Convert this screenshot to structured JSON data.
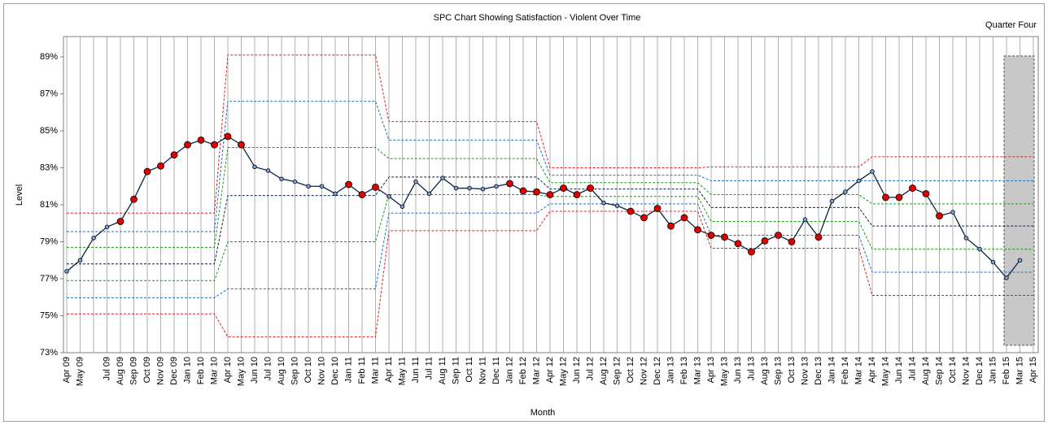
{
  "chart_data": {
    "type": "line",
    "title": "SPC Chart Showing Satisfaction - Violent Over Time",
    "x_label": "Month",
    "y_label": "Level",
    "categories": [
      "Apr 09",
      "May 09",
      null,
      "Jul 09",
      "Aug 09",
      "Sep 09",
      "Oct 09",
      "Nov 09",
      "Dec 09",
      "Jan 10",
      "Feb 10",
      "Mar 10",
      "Apr 10",
      "May 10",
      "Jun 10",
      "Jul 10",
      "Aug 10",
      "Sep 10",
      "Oct 10",
      "Nov 10",
      "Dec 10",
      "Jan 11",
      "Feb 11",
      "Mar 11",
      "Apr 11",
      "May 11",
      "Jun 11",
      "Jul 11",
      "Aug 11",
      "Sep 11",
      "Oct 11",
      "Nov 11",
      "Dec 11",
      "Jan 12",
      "Feb 12",
      "Mar 12",
      "Apr 12",
      "May 12",
      "Jun 12",
      "Jul 12",
      "Aug 12",
      "Sep 12",
      "Oct 12",
      "Nov 12",
      "Dec 12",
      "Jan 13",
      "Feb 13",
      "Mar 13",
      "Apr 13",
      "May 13",
      "Jun 13",
      "Jul 13",
      "Aug 13",
      "Sep 13",
      "Oct 13",
      "Nov 13",
      "Dec 13",
      "Jan 14",
      "Feb 14",
      "Mar 14",
      "Apr 14",
      "May 14",
      "Jun 14",
      "Jul 14",
      "Aug 14",
      "Sep 14",
      "Oct 14",
      "Nov 14",
      "Dec 14",
      "Jan 15",
      "Feb 15",
      "Mar 15",
      "Apr 15"
    ],
    "series": [
      {
        "color": "#0d2240",
        "values": [
          77.4,
          78.0,
          79.2,
          79.8,
          80.1,
          81.3,
          82.8,
          83.1,
          83.7,
          84.25,
          84.5,
          84.25,
          84.7,
          84.25,
          83.05,
          82.85,
          82.4,
          82.25,
          82.0,
          82.0,
          81.6,
          82.1,
          81.55,
          81.95,
          81.45,
          80.9,
          82.25,
          81.6,
          82.45,
          81.9,
          81.9,
          81.85,
          82.0,
          82.15,
          81.75,
          81.7,
          81.55,
          81.9,
          81.55,
          81.9,
          81.1,
          80.95,
          80.65,
          80.3,
          80.8,
          79.85,
          80.3,
          79.65,
          79.35,
          79.25,
          78.9,
          78.45,
          79.05,
          79.35,
          79.0,
          80.2,
          79.25,
          81.2,
          81.7,
          82.3,
          82.8,
          81.4,
          81.4,
          81.9,
          81.6,
          80.4,
          80.6,
          79.2,
          78.6,
          77.9,
          77.05,
          78.0,
          null
        ]
      }
    ],
    "highlight": {
      "color": "#e00000",
      "indices": [
        4,
        5,
        6,
        7,
        8,
        9,
        10,
        11,
        12,
        13,
        21,
        22,
        23,
        33,
        34,
        35,
        36,
        37,
        38,
        39,
        42,
        43,
        44,
        45,
        46,
        47,
        48,
        49,
        50,
        51,
        52,
        53,
        54,
        56,
        61,
        62,
        63,
        64,
        65
      ]
    },
    "limit_colors": [
      "#e02020",
      "#1f6fc0",
      "#1a9a1a",
      "#0d2240",
      "#1a9a1a",
      "#1f6fc0",
      "#e02020"
    ],
    "phases": [
      {
        "from": "Apr 09",
        "to": "Mar 10",
        "limits": [
          80.55,
          79.55,
          78.7,
          77.8,
          76.9,
          75.97,
          75.1
        ]
      },
      {
        "from": "Apr 10",
        "to": "Mar 11",
        "limits": [
          89.1,
          86.6,
          84.1,
          81.5,
          79.0,
          76.45,
          73.85
        ]
      },
      {
        "from": "Apr 11",
        "to": "Mar 12",
        "limits": [
          85.5,
          84.5,
          83.5,
          82.5,
          81.55,
          80.55,
          79.6
        ]
      },
      {
        "from": "Apr 12",
        "to": "Mar 13",
        "limits": [
          83.0,
          82.6,
          82.2,
          81.85,
          81.45,
          81.05,
          80.65
        ]
      },
      {
        "from": "Apr 13",
        "to": "Mar 14",
        "limits": [
          83.05,
          82.3,
          81.55,
          80.85,
          80.1,
          79.35,
          78.65
        ]
      },
      {
        "from": "Apr 14",
        "to": "Apr 15",
        "limits": [
          83.6,
          82.3,
          81.05,
          79.85,
          78.6,
          77.35,
          76.1
        ]
      }
    ],
    "annotation": {
      "text": "Quarter Four",
      "x0": "Feb 15",
      "x1": "Apr 15",
      "y0": 73.4,
      "y1": 89.05,
      "color": "#c8c8c8"
    },
    "ylim": [
      73,
      90.1
    ],
    "yticks": [
      {
        "value": 73,
        "label": "73%"
      },
      {
        "value": 75,
        "label": "75%"
      },
      {
        "value": 77,
        "label": "77%"
      },
      {
        "value": 79,
        "label": "79%"
      },
      {
        "value": 81,
        "label": "81%"
      },
      {
        "value": 83,
        "label": "83%"
      },
      {
        "value": 85,
        "label": "85%"
      },
      {
        "value": 87,
        "label": "87%"
      },
      {
        "value": 89,
        "label": "89%"
      }
    ],
    "grid": true
  }
}
